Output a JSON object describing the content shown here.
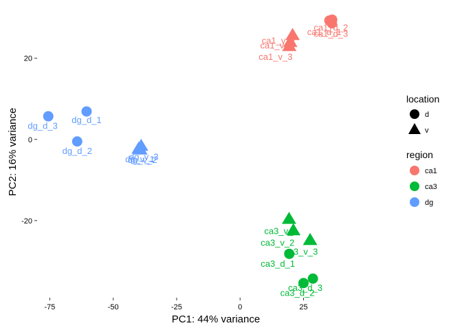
{
  "chart_data": {
    "type": "scatter",
    "title": "",
    "xlabel": "PC1: 44% variance",
    "ylabel": "PC2: 16% variance",
    "xlim": [
      -80,
      62
    ],
    "ylim": [
      -39,
      33
    ],
    "xticks": [
      -75,
      -50,
      -25,
      0,
      25
    ],
    "yticks": [
      -20,
      0,
      20
    ],
    "xtick_labels": [
      "-75",
      "-50",
      "-25",
      "0",
      "25"
    ],
    "ytick_labels": [
      "-20",
      "0",
      "20"
    ],
    "grid": false,
    "legend_position": "right",
    "legend": {
      "location": {
        "title": "location",
        "items": [
          {
            "label": "d",
            "shape": "circle"
          },
          {
            "label": "v",
            "shape": "triangle"
          }
        ]
      },
      "region": {
        "title": "region",
        "items": [
          {
            "label": "ca1",
            "color": "#F8766D"
          },
          {
            "label": "ca3",
            "color": "#00BA38"
          },
          {
            "label": "dg",
            "color": "#619CFF"
          }
        ]
      }
    },
    "points": [
      {
        "label": "ca1_d_1",
        "x": 35.2,
        "y": 29.3,
        "region": "ca1",
        "location": "d"
      },
      {
        "label": "ca1_d_2",
        "x": 36.3,
        "y": 29.5,
        "region": "ca1",
        "location": "d"
      },
      {
        "label": "ca1_d_3",
        "x": 36.2,
        "y": 28.6,
        "region": "ca1",
        "location": "d"
      },
      {
        "label": "ca1_v_1",
        "x": 19.8,
        "y": 23.9,
        "region": "ca1",
        "location": "v"
      },
      {
        "label": "ca1_v_2",
        "x": 20.7,
        "y": 25.6,
        "region": "ca1",
        "location": "v"
      },
      {
        "label": "ca1_v_3",
        "x": 19.4,
        "y": 22.9,
        "region": "ca1",
        "location": "v"
      },
      {
        "label": "ca3_d_1",
        "x": 19.4,
        "y": -28.2,
        "region": "ca3",
        "location": "d"
      },
      {
        "label": "ca3_d_2",
        "x": 25.0,
        "y": -35.4,
        "region": "ca3",
        "location": "d"
      },
      {
        "label": "ca3_d_3",
        "x": 28.7,
        "y": -34.3,
        "region": "ca3",
        "location": "d"
      },
      {
        "label": "ca3_v_1",
        "x": 19.3,
        "y": -19.7,
        "region": "ca3",
        "location": "v"
      },
      {
        "label": "ca3_v_2",
        "x": 21.0,
        "y": -22.5,
        "region": "ca3",
        "location": "v"
      },
      {
        "label": "ca3_v_3",
        "x": 27.6,
        "y": -24.9,
        "region": "ca3",
        "location": "v"
      },
      {
        "label": "dg_d_1",
        "x": -60.5,
        "y": 6.9,
        "region": "dg",
        "location": "d"
      },
      {
        "label": "dg_d_2",
        "x": -64.2,
        "y": -0.5,
        "region": "dg",
        "location": "d"
      },
      {
        "label": "dg_d_3",
        "x": -75.6,
        "y": 5.7,
        "region": "dg",
        "location": "d"
      },
      {
        "label": "dg_v_1",
        "x": -40.0,
        "y": -2.4,
        "region": "dg",
        "location": "v"
      },
      {
        "label": "dg_v_2",
        "x": -39.3,
        "y": -2.6,
        "region": "dg",
        "location": "v"
      },
      {
        "label": "dg_v_3",
        "x": -39.0,
        "y": -1.7,
        "region": "dg",
        "location": "v"
      }
    ],
    "point_labels": [
      {
        "text": "ca1_d_1",
        "x": 33.2,
        "y": 25.7,
        "region": "ca1"
      },
      {
        "text": "ca1_d_2",
        "x": 35.8,
        "y": 26.8,
        "region": "ca1"
      },
      {
        "text": "ca1_d_3",
        "x": 35.8,
        "y": 25.3,
        "region": "ca1"
      },
      {
        "text": "ca1_v_1",
        "x": 14.6,
        "y": 22.4,
        "region": "ca1"
      },
      {
        "text": "ca1_v_2",
        "x": 15.2,
        "y": 23.6,
        "region": "ca1"
      },
      {
        "text": "ca1_v_3",
        "x": 14.0,
        "y": 19.6,
        "region": "ca1"
      },
      {
        "text": "ca3_d_1",
        "x": 14.9,
        "y": -31.4,
        "region": "ca3"
      },
      {
        "text": "ca3_d_2",
        "x": 22.6,
        "y": -38.6,
        "region": "ca3"
      },
      {
        "text": "ca3_d_3",
        "x": 25.7,
        "y": -37.3,
        "region": "ca3"
      },
      {
        "text": "ca3_v_1",
        "x": 16.2,
        "y": -23.3,
        "region": "ca3"
      },
      {
        "text": "ca3_v_2",
        "x": 14.8,
        "y": -26.2,
        "region": "ca3"
      },
      {
        "text": "ca3_v_3",
        "x": 24.0,
        "y": -28.4,
        "region": "ca3"
      },
      {
        "text": "dg_d_1",
        "x": -60.5,
        "y": 4.0,
        "region": "dg"
      },
      {
        "text": "dg_d_2",
        "x": -64.2,
        "y": -3.6,
        "region": "dg"
      },
      {
        "text": "dg_d_3",
        "x": -77.8,
        "y": 2.6,
        "region": "dg"
      },
      {
        "text": "dg_v_1",
        "x": -39.5,
        "y": -5.6,
        "region": "dg"
      },
      {
        "text": "dg_v_2",
        "x": -38.5,
        "y": -5.8,
        "region": "dg"
      },
      {
        "text": "dg_v_3",
        "x": -37.9,
        "y": -5.0,
        "region": "dg"
      }
    ]
  }
}
